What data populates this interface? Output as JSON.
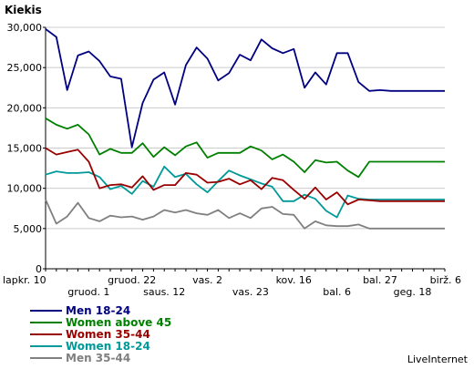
{
  "chart_data": {
    "type": "line",
    "ylabel": "Kiekis",
    "ylim": [
      0,
      30000
    ],
    "yticks": [
      0,
      5000,
      10000,
      15000,
      20000,
      25000,
      30000
    ],
    "ytick_labels": [
      "0",
      "5,000",
      "10,000",
      "15,000",
      "20,000",
      "25,000",
      "30,000"
    ],
    "x_count": 38,
    "xtick_labels_row1": [
      {
        "i": 0,
        "label": "lapkr. 10"
      },
      {
        "i": 8,
        "label": "gruod. 22"
      },
      {
        "i": 15,
        "label": "vas. 2"
      },
      {
        "i": 23,
        "label": "kov. 16"
      },
      {
        "i": 31,
        "label": "bal. 27"
      },
      {
        "i": 37,
        "label": "birž. 6"
      }
    ],
    "xtick_labels_row2": [
      {
        "i": 4,
        "label": "gruod. 1"
      },
      {
        "i": 11,
        "label": "saus. 12"
      },
      {
        "i": 19,
        "label": "vas. 23"
      },
      {
        "i": 27,
        "label": "bal. 6"
      },
      {
        "i": 34,
        "label": "geg. 18"
      }
    ],
    "grid": "horizontal",
    "legend_position": "bottom-left",
    "series": [
      {
        "name": "Men 18-24",
        "color": "#000080",
        "values": [
          29800,
          28800,
          22200,
          26500,
          27000,
          25800,
          23900,
          23600,
          15100,
          20600,
          23500,
          24400,
          20400,
          25300,
          27500,
          26100,
          23400,
          24300,
          26600,
          25900,
          28500,
          27400,
          26800,
          27300,
          22500,
          24400,
          22900,
          26800,
          26800,
          23200,
          22100,
          22200,
          22100,
          22100,
          22100,
          22100,
          22100,
          22100
        ]
      },
      {
        "name": "Women above 45",
        "color": "#008000",
        "values": [
          18700,
          17900,
          17400,
          17900,
          16700,
          14200,
          14900,
          14400,
          14400,
          15600,
          13900,
          15100,
          14100,
          15200,
          15700,
          13800,
          14400,
          14400,
          14400,
          15200,
          14700,
          13600,
          14200,
          13300,
          12000,
          13500,
          13200,
          13300,
          12200,
          11400,
          13300,
          13300,
          13300,
          13300,
          13300,
          13300,
          13300,
          13300
        ]
      },
      {
        "name": "Women 35-44",
        "color": "#990000",
        "values": [
          15000,
          14200,
          14500,
          14800,
          13300,
          10000,
          10400,
          10500,
          10100,
          11500,
          9800,
          10400,
          10400,
          11900,
          11700,
          10700,
          10800,
          11200,
          10500,
          11000,
          9900,
          11300,
          11000,
          9800,
          8700,
          10100,
          8600,
          9500,
          8000,
          8600,
          8500,
          8400,
          8400,
          8400,
          8400,
          8400,
          8400,
          8400
        ]
      },
      {
        "name": "Women 18-24",
        "color": "#009999",
        "values": [
          11700,
          12100,
          11900,
          11900,
          12000,
          11400,
          9900,
          10300,
          9300,
          10900,
          10200,
          12700,
          11400,
          11800,
          10500,
          9500,
          10900,
          12200,
          11600,
          11100,
          10600,
          10200,
          8400,
          8400,
          9200,
          8700,
          7200,
          6400,
          9100,
          8700,
          8600,
          8600,
          8600,
          8600,
          8600,
          8600,
          8600,
          8600
        ]
      },
      {
        "name": "Men 35-44",
        "color": "#808080",
        "values": [
          8600,
          5600,
          6500,
          8200,
          6300,
          5900,
          6600,
          6400,
          6500,
          6100,
          6500,
          7300,
          7000,
          7300,
          6900,
          6700,
          7300,
          6300,
          6900,
          6300,
          7500,
          7700,
          6800,
          6700,
          5000,
          5900,
          5400,
          5300,
          5300,
          5500,
          5000,
          5000,
          5000,
          5000,
          5000,
          5000,
          5000,
          5000
        ]
      }
    ]
  },
  "brand": "LiveInternet"
}
